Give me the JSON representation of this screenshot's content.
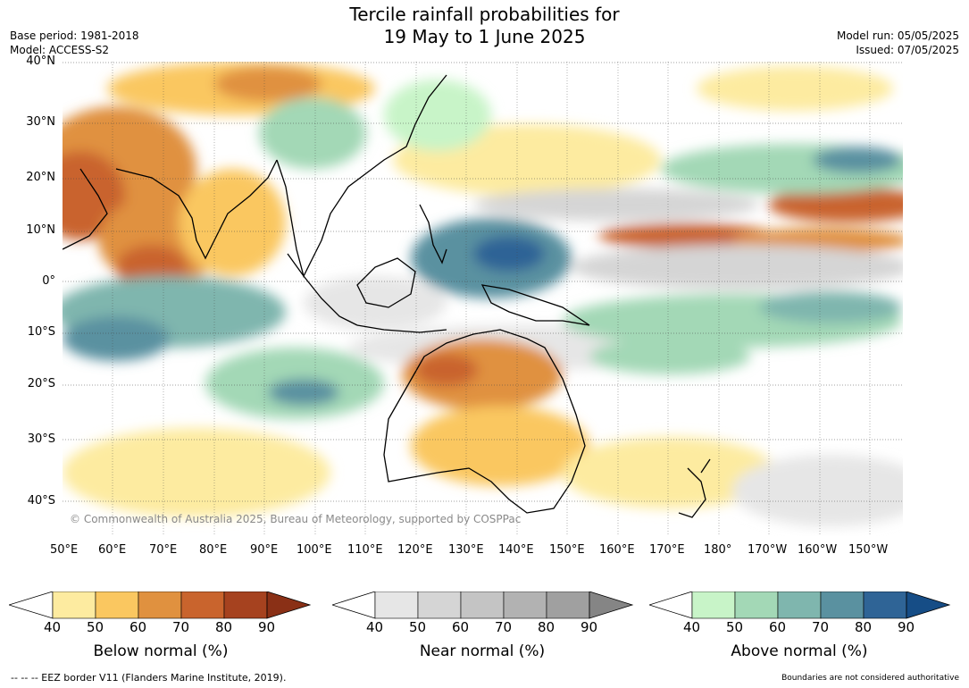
{
  "title": {
    "line1": "Tercile rainfall probabilities for",
    "line2": "19 May to 1 June 2025"
  },
  "meta": {
    "base_period": "Base period: 1981-2018",
    "model": "Model: ACCESS-S2",
    "model_run": "Model run: 05/05/2025",
    "issued": "Issued: 07/05/2025"
  },
  "map": {
    "lat_labels": [
      "40°N",
      "30°N",
      "20°N",
      "10°N",
      "0°",
      "10°S",
      "20°S",
      "30°S",
      "40°S"
    ],
    "lon_labels": [
      "50°E",
      "60°E",
      "70°E",
      "80°E",
      "90°E",
      "100°E",
      "110°E",
      "120°E",
      "130°E",
      "140°E",
      "150°E",
      "160°E",
      "170°E",
      "180°",
      "170°W",
      "160°W",
      "150°W"
    ],
    "copyright": "© Commonwealth of Australia 2025, Bureau of Meteorology, supported by COSPPac"
  },
  "colorbars": [
    {
      "title": "Below normal (%)",
      "ticks": [
        "40",
        "50",
        "60",
        "70",
        "80",
        "90"
      ],
      "colors": [
        "#fdeba0",
        "#fac760",
        "#e0913f",
        "#c9642d",
        "#a6421f",
        "#8a3016"
      ]
    },
    {
      "title": "Near normal (%)",
      "ticks": [
        "40",
        "50",
        "60",
        "70",
        "80",
        "90"
      ],
      "colors": [
        "#e6e6e6",
        "#d5d5d5",
        "#c4c4c4",
        "#b2b2b2",
        "#a0a0a0",
        "#858585"
      ]
    },
    {
      "title": "Above normal (%)",
      "ticks": [
        "40",
        "50",
        "60",
        "70",
        "80",
        "90"
      ],
      "colors": [
        "#c8f4c8",
        "#a3d8b6",
        "#7fb6ae",
        "#5a91a0",
        "#2f6496",
        "#164d86"
      ]
    }
  ],
  "footer": {
    "eez": "--  --  -- EEZ border V11 (Flanders Marine Institute, 2019).",
    "disclaimer": "Boundaries are not considered authoritative"
  }
}
